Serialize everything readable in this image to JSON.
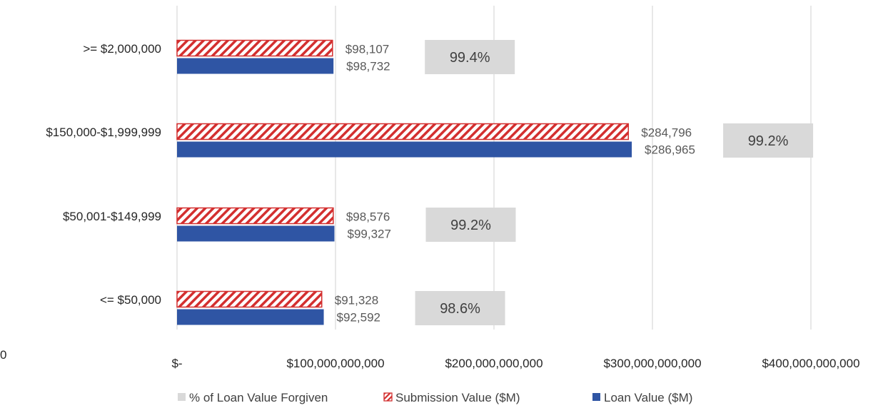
{
  "chart_data": {
    "type": "bar",
    "orientation": "horizontal",
    "categories": [
      ">= $2,000,000",
      "$150,000-$1,999,999",
      "$50,001-$149,999",
      "<= $50,000"
    ],
    "series": [
      {
        "name": "Submission Value ($M)",
        "values": [
          98107,
          284796,
          98576,
          91328
        ],
        "labels": [
          "$98,107",
          "$284,796",
          "$98,576",
          "$91,328"
        ],
        "color": "#d32f2f",
        "pattern": "diagonal-hatch"
      },
      {
        "name": "Loan Value ($M)",
        "values": [
          98732,
          286965,
          99327,
          92592
        ],
        "labels": [
          "$98,732",
          "$286,965",
          "$99,327",
          "$92,592"
        ],
        "color": "#2f55a4"
      },
      {
        "name": "% of Loan Value Forgiven",
        "values": [
          99.4,
          99.2,
          99.2,
          98.6
        ],
        "labels": [
          "99.4%",
          "99.2%",
          "99.2%",
          "98.6%"
        ],
        "color": "#d9d9d9"
      }
    ],
    "x_tick_labels": [
      "$-",
      "$100,000,000,000",
      "$200,000,000,000",
      "$300,000,000,000",
      "$400,000,000,000"
    ],
    "x_ticks": [
      0,
      100000,
      200000,
      300000,
      400000
    ],
    "xlim": [
      0,
      400000
    ],
    "secondary_axis_tick": "0",
    "grid": true,
    "legend_position": "bottom",
    "legend": [
      "% of Loan Value Forgiven",
      "Submission Value ($M)",
      "Loan Value ($M)"
    ]
  }
}
